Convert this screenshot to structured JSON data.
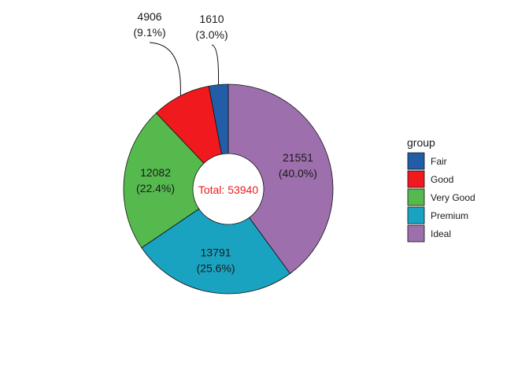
{
  "chart_data": {
    "type": "pie",
    "style": "donut",
    "categories": [
      "Fair",
      "Good",
      "Very Good",
      "Premium",
      "Ideal"
    ],
    "values": [
      1610,
      4906,
      12082,
      13791,
      21551
    ],
    "percent_labels": [
      "(3.0%)",
      "(9.1%)",
      "(22.4%)",
      "(25.6%)",
      "(40.0%)"
    ],
    "value_labels": [
      "1610",
      "4906",
      "12082",
      "13791",
      "21551"
    ],
    "colors": [
      "#225EA8",
      "#F0191E",
      "#55B94E",
      "#1AA3C1",
      "#9E6FAD"
    ],
    "total_label": "Total: 53940",
    "total_color": "#F0191E",
    "legend": {
      "title": "group",
      "position": "right",
      "entries": [
        "Fair",
        "Good",
        "Very Good",
        "Premium",
        "Ideal"
      ]
    }
  }
}
